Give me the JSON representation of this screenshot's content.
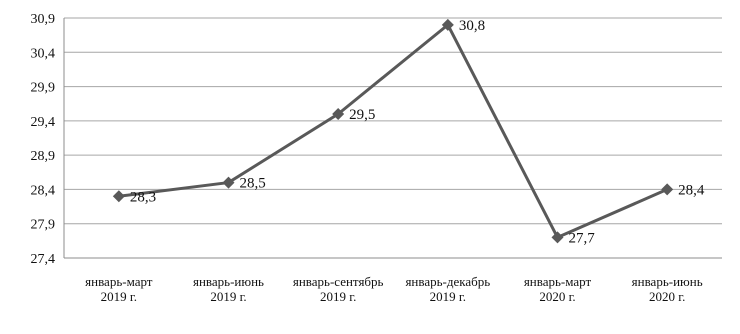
{
  "chart_data": {
    "type": "line",
    "categories": [
      [
        "январь-март",
        "2019 г."
      ],
      [
        "январь-июнь",
        "2019 г."
      ],
      [
        "январь-сентябрь",
        "2019 г."
      ],
      [
        "январь-декабрь",
        "2019 г."
      ],
      [
        "январь-март",
        "2020 г."
      ],
      [
        "январь-июнь",
        "2020 г."
      ]
    ],
    "series": [
      {
        "values": [
          28.3,
          28.5,
          29.5,
          30.8,
          27.7,
          28.4
        ],
        "color": "#595959",
        "marker": "diamond"
      }
    ],
    "data_labels": [
      "28,3",
      "28,5",
      "29,5",
      "30,8",
      "27,7",
      "28,4"
    ],
    "y_ticks": [
      27.4,
      27.9,
      28.4,
      28.9,
      29.4,
      29.9,
      30.4,
      30.9
    ],
    "y_tick_labels": [
      "27,4",
      "27,9",
      "28,4",
      "28,9",
      "29,4",
      "29,9",
      "30,4",
      "30,9"
    ],
    "ylim": [
      27.4,
      30.9
    ],
    "grid": "horizontal",
    "title": "",
    "xlabel": "",
    "ylabel": ""
  }
}
